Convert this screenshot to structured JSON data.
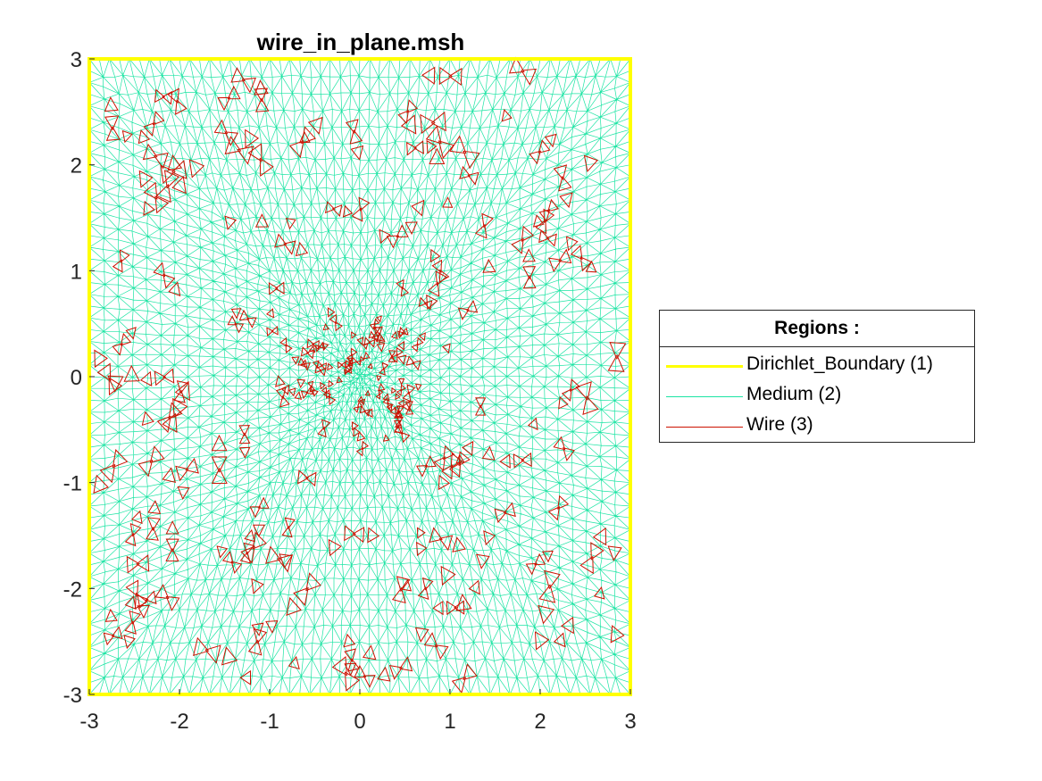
{
  "chart_data": {
    "type": "mesh",
    "title": "wire_in_plane.msh",
    "xlabel": "",
    "ylabel": "",
    "xlim": [
      -3,
      3
    ],
    "ylim": [
      -3,
      3
    ],
    "xticks": [
      "-3",
      "-2",
      "-1",
      "0",
      "1",
      "2",
      "3"
    ],
    "yticks": [
      "3",
      "2",
      "1",
      "0",
      "-1",
      "-2",
      "-3"
    ],
    "grid": false,
    "legend_position": "outside-right",
    "legend": {
      "title": "Regions :",
      "entries": [
        {
          "label": "Dirichlet_Boundary (1)",
          "color": "#ffff00"
        },
        {
          "label": "Medium (2)",
          "color": "#1be4a3"
        },
        {
          "label": "Wire (3)",
          "color": "#cc1100"
        }
      ]
    },
    "regions": [
      {
        "name": "Dirichlet_Boundary",
        "id": 1,
        "shape": "square",
        "extent": [
          -3,
          3,
          -3,
          3
        ]
      },
      {
        "name": "Medium",
        "id": 2,
        "shape": "triangulated square",
        "extent": [
          -3,
          3,
          -3,
          3
        ],
        "refinement_center": [
          0,
          0
        ]
      },
      {
        "name": "Wire",
        "id": 3,
        "shape": "scattered triangles",
        "density_center": [
          0,
          0
        ]
      }
    ]
  }
}
